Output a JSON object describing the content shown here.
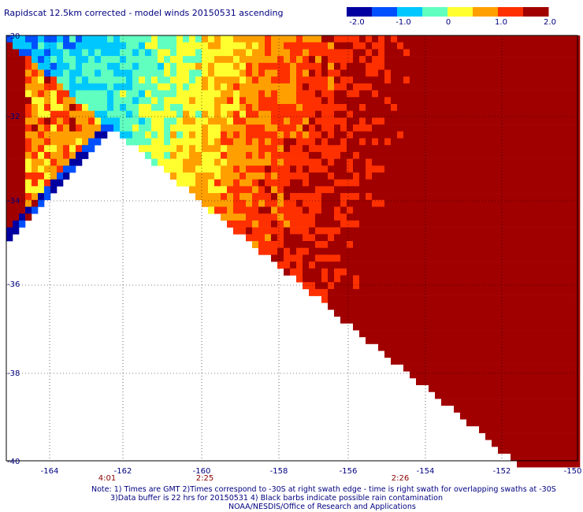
{
  "chart_data": {
    "type": "heatmap",
    "title": "Rapidscat 12.5km corrected - model winds 20150531 ascending",
    "colorbar": {
      "ticks": [
        "-2.0",
        "-1.0",
        "0",
        "1.0",
        "2.0"
      ],
      "range": [
        -2.0,
        2.0
      ],
      "colors": [
        "#0000a0",
        "#0050ff",
        "#00c8ff",
        "#60ffc0",
        "#ffff30",
        "#ffa000",
        "#ff3000",
        "#a00000"
      ]
    },
    "xlim": [
      -165.5,
      -150
    ],
    "ylim": [
      -40,
      -30
    ],
    "x_ticks": [
      "-164",
      "-162",
      "-160",
      "-158",
      "-156",
      "-154",
      "-152",
      "-150"
    ],
    "y_ticks": [
      "-30",
      "-32",
      "-34",
      "-36",
      "-38",
      "-40"
    ],
    "swath_times": [
      {
        "label": "4:01",
        "lon": -162.3
      },
      {
        "label": "2:25",
        "lon": -159.8
      },
      {
        "label": "2:26",
        "lon": -155.1
      }
    ],
    "regions": [
      {
        "name": "upper-left swath",
        "pattern": "mostly difference near 0 to +1, strong +2 along west edge, -2 strip along lower diagonal edge"
      },
      {
        "name": "main swath",
        "pattern": "about -1 near northern edge, grading through 0 and +1 to +2 in the southeast"
      }
    ]
  },
  "notes": [
    "Note: 1) Times are GMT 2)Times correspond to -30S at right swath edge - time is right swath for overlapping swaths at -30S",
    "3)Data buffer is 22 hrs for 20150531 4) Black barbs indicate possible rain contamination",
    "NOAA/NESDIS/Office of Research and Applications"
  ]
}
